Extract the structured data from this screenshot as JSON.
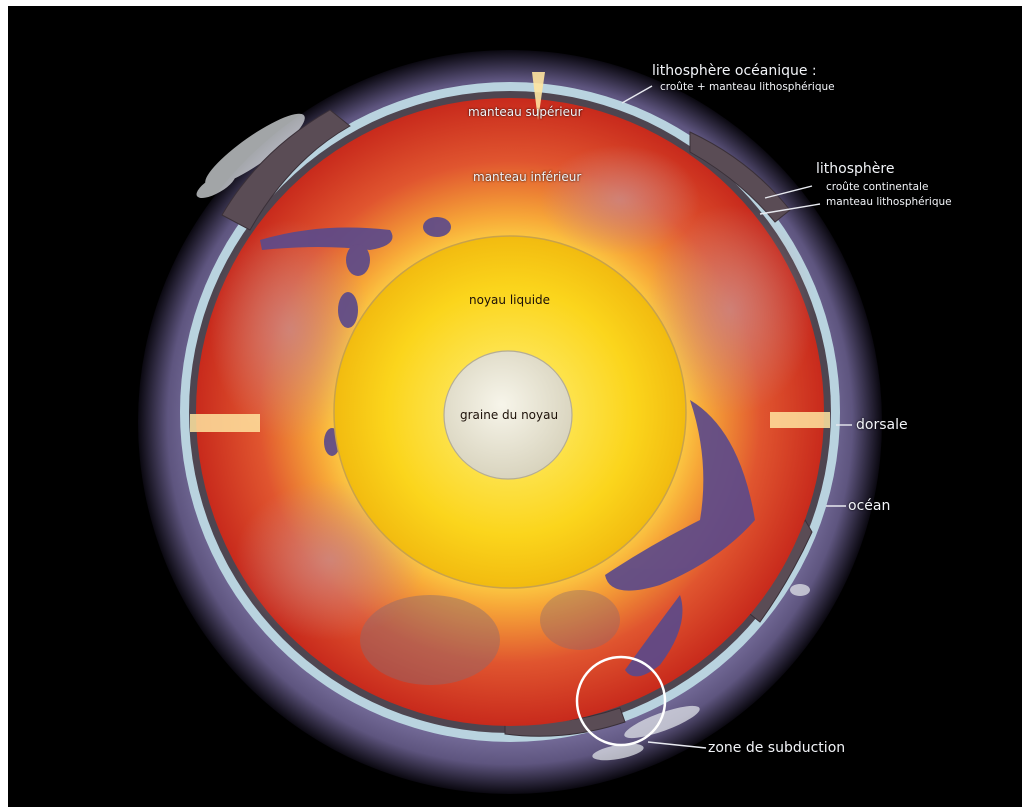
{
  "labels": {
    "oceanic_lithosphere_title": "lithosphère océanique :",
    "oceanic_lithosphere_detail": "croûte + manteau lithosphérique",
    "upper_mantle": "manteau supérieur",
    "lower_mantle": "manteau inférieur",
    "lithosphere_title": "lithosphère",
    "continental_crust": "croûte continentale",
    "lithospheric_mantle": "manteau lithosphérique",
    "liquid_core": "noyau liquide",
    "inner_core": "graine du noyau",
    "ridge": "dorsale",
    "ocean": "océan",
    "subduction_zone": "zone de subduction"
  },
  "colors": {
    "background": "#000000",
    "atmosphere": "#6f6596",
    "ocean": "#b9d3df",
    "lithosphere": "#5a4c55",
    "mantle": "#e0402a",
    "outer_core": "#f8cf12",
    "inner_core": "#e6e2d0",
    "plume": "#5c4a8a",
    "label_text": "#f2f4f8"
  }
}
